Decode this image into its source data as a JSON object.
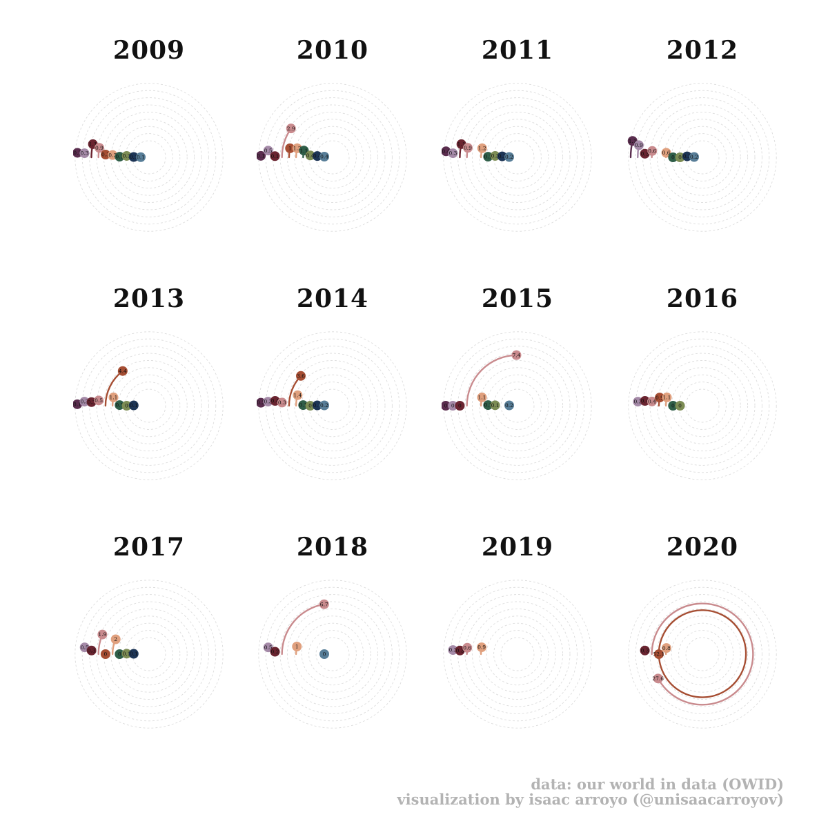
{
  "chart_data": [
    {
      "type": "radial",
      "title": "2009",
      "rmax": 30,
      "points": [
        {
          "label": "0.3",
          "value": 0.3,
          "color": "#5a2d4e",
          "shown": true
        },
        {
          "label": "0.3",
          "value": 0.3,
          "color": "#a58aa8",
          "shown": true
        },
        {
          "label": "1.1",
          "value": 1.1,
          "color": "#6a2430",
          "shown": true
        },
        {
          "label": "0.9",
          "value": 0.9,
          "color": "#c98b8e",
          "shown": true
        },
        {
          "label": "0.3",
          "value": 0.3,
          "color": "#a64e33",
          "shown": true
        },
        {
          "label": "0.3",
          "value": 0.3,
          "color": "#e0a07e",
          "shown": true
        },
        {
          "label": "0.1",
          "value": 0.1,
          "color": "#2f5e48",
          "shown": true
        },
        {
          "label": "0.3",
          "value": 0.3,
          "color": "#7c8c54",
          "shown": true
        },
        {
          "label": "0.1",
          "value": 0.1,
          "color": "#1d3556",
          "shown": true
        },
        {
          "label": "0.1",
          "value": 0.1,
          "color": "#587e98",
          "shown": true
        }
      ]
    },
    {
      "type": "radial",
      "title": "2010",
      "rmax": 30,
      "points": [
        {
          "label": "0.1",
          "value": 0.1,
          "color": "#5a2d4e",
          "shown": true
        },
        {
          "label": "0.5",
          "value": 0.5,
          "color": "#a58aa8",
          "shown": true
        },
        {
          "label": "0.1",
          "value": 0.1,
          "color": "#6a2430",
          "shown": true
        },
        {
          "label": "2.9",
          "value": 2.9,
          "color": "#c98b8e",
          "shown": true
        },
        {
          "label": "1",
          "value": 1,
          "color": "#a64e33",
          "shown": true
        },
        {
          "label": "1.2",
          "value": 1.2,
          "color": "#e0a07e",
          "shown": true
        },
        {
          "label": "1.1",
          "value": 1.1,
          "color": "#2f5e48",
          "shown": true
        },
        {
          "label": "0.4",
          "value": 0.4,
          "color": "#7c8c54",
          "shown": true
        },
        {
          "label": "0.4",
          "value": 0.4,
          "color": "#1d3556",
          "shown": true
        },
        {
          "label": "0.4",
          "value": 0.4,
          "color": "#587e98",
          "shown": true
        }
      ]
    },
    {
      "type": "radial",
      "title": "2011",
      "rmax": 30,
      "points": [
        {
          "label": "0.4",
          "value": 0.4,
          "color": "#5a2d4e",
          "shown": true
        },
        {
          "label": "0.3",
          "value": 0.3,
          "color": "#a58aa8",
          "shown": true
        },
        {
          "label": "1.1",
          "value": 1.1,
          "color": "#6a2430",
          "shown": true
        },
        {
          "label": "0.9",
          "value": 0.9,
          "color": "#c98b8e",
          "shown": true
        },
        {
          "label": "",
          "value": 0,
          "color": "#a64e33",
          "shown": false
        },
        {
          "label": "1.2",
          "value": 1.2,
          "color": "#e0a07e",
          "shown": true
        },
        {
          "label": "0.1",
          "value": 0.1,
          "color": "#2f5e48",
          "shown": true
        },
        {
          "label": "0.3",
          "value": 0.3,
          "color": "#7c8c54",
          "shown": true
        },
        {
          "label": "0.3",
          "value": 0.3,
          "color": "#1d3556",
          "shown": true
        },
        {
          "label": "0.2",
          "value": 0.2,
          "color": "#587e98",
          "shown": true
        }
      ]
    },
    {
      "type": "radial",
      "title": "2012",
      "rmax": 30,
      "points": [
        {
          "label": "1.1",
          "value": 1.1,
          "color": "#5a2d4e",
          "shown": true
        },
        {
          "label": "0.9",
          "value": 0.9,
          "color": "#a58aa8",
          "shown": true
        },
        {
          "label": "0.3",
          "value": 0.3,
          "color": "#6a2430",
          "shown": true
        },
        {
          "label": "0.6",
          "value": 0.6,
          "color": "#c98b8e",
          "shown": true
        },
        {
          "label": "",
          "value": 0,
          "color": "#a64e33",
          "shown": false
        },
        {
          "label": "0.6",
          "value": 0.6,
          "color": "#e0a07e",
          "shown": true
        },
        {
          "label": "0",
          "value": 0,
          "color": "#2f5e48",
          "shown": true
        },
        {
          "label": "0",
          "value": 0,
          "color": "#7c8c54",
          "shown": true
        },
        {
          "label": "0.3",
          "value": 0.3,
          "color": "#1d3556",
          "shown": true
        },
        {
          "label": "0.2",
          "value": 0.2,
          "color": "#587e98",
          "shown": true
        }
      ]
    },
    {
      "type": "radial",
      "title": "2013",
      "rmax": 30,
      "points": [
        {
          "label": "0.1",
          "value": 0.1,
          "color": "#5a2d4e",
          "shown": true
        },
        {
          "label": "0.3",
          "value": 0.3,
          "color": "#a58aa8",
          "shown": true
        },
        {
          "label": "0.3",
          "value": 0.3,
          "color": "#6a2430",
          "shown": true
        },
        {
          "label": "0.5",
          "value": 0.5,
          "color": "#c98b8e",
          "shown": true
        },
        {
          "label": "4.4",
          "value": 4.4,
          "color": "#a64e33",
          "shown": true
        },
        {
          "label": "1.1",
          "value": 1.1,
          "color": "#e0a07e",
          "shown": true
        },
        {
          "label": "0.1",
          "value": 0.1,
          "color": "#2f5e48",
          "shown": true
        },
        {
          "label": "0",
          "value": 0,
          "color": "#7c8c54",
          "shown": true
        },
        {
          "label": "0.1",
          "value": 0.1,
          "color": "#1d3556",
          "shown": true
        },
        {
          "label": "",
          "value": 0,
          "color": "#587e98",
          "shown": false
        }
      ]
    },
    {
      "type": "radial",
      "title": "2014",
      "rmax": 30,
      "points": [
        {
          "label": "0.2",
          "value": 0.2,
          "color": "#5a2d4e",
          "shown": true
        },
        {
          "label": "0.3",
          "value": 0.3,
          "color": "#a58aa8",
          "shown": true
        },
        {
          "label": "0.4",
          "value": 0.4,
          "color": "#6a2430",
          "shown": true
        },
        {
          "label": "0.3",
          "value": 0.3,
          "color": "#c98b8e",
          "shown": true
        },
        {
          "label": "3.6",
          "value": 3.6,
          "color": "#a64e33",
          "shown": true
        },
        {
          "label": "1.4",
          "value": 1.4,
          "color": "#e0a07e",
          "shown": true
        },
        {
          "label": "0.1",
          "value": 0.1,
          "color": "#2f5e48",
          "shown": true
        },
        {
          "label": "0",
          "value": 0,
          "color": "#7c8c54",
          "shown": true
        },
        {
          "label": "0.1",
          "value": 0.1,
          "color": "#1d3556",
          "shown": true
        },
        {
          "label": "0.2",
          "value": 0.2,
          "color": "#587e98",
          "shown": true
        }
      ]
    },
    {
      "type": "radial",
      "title": "2015",
      "rmax": 30,
      "points": [
        {
          "label": "0",
          "value": 0,
          "color": "#5a2d4e",
          "shown": true
        },
        {
          "label": "0",
          "value": 0,
          "color": "#a58aa8",
          "shown": true
        },
        {
          "label": "0",
          "value": 0,
          "color": "#6a2430",
          "shown": true
        },
        {
          "label": "7.4",
          "value": 7.4,
          "color": "#c98b8e",
          "shown": true
        },
        {
          "label": "",
          "value": 0,
          "color": "#a64e33",
          "shown": false
        },
        {
          "label": "1.1",
          "value": 1.1,
          "color": "#e0a07e",
          "shown": true
        },
        {
          "label": "0.1",
          "value": 0.1,
          "color": "#2f5e48",
          "shown": true
        },
        {
          "label": "0.1",
          "value": 0.1,
          "color": "#7c8c54",
          "shown": true
        },
        {
          "label": "",
          "value": 0,
          "color": "#1d3556",
          "shown": false
        },
        {
          "label": "0.2",
          "value": 0.2,
          "color": "#587e98",
          "shown": true
        }
      ]
    },
    {
      "type": "radial",
      "title": "2016",
      "rmax": 30,
      "points": [
        {
          "label": "0",
          "value": 0,
          "color": "#5a2d4e",
          "shown": false
        },
        {
          "label": "0.3",
          "value": 0.3,
          "color": "#a58aa8",
          "shown": true
        },
        {
          "label": "0.4",
          "value": 0.4,
          "color": "#6a2430",
          "shown": true
        },
        {
          "label": "0.4",
          "value": 0.4,
          "color": "#c98b8e",
          "shown": true
        },
        {
          "label": "0.9",
          "value": 0.9,
          "color": "#a64e33",
          "shown": true
        },
        {
          "label": "1.1",
          "value": 1.1,
          "color": "#e0a07e",
          "shown": true
        },
        {
          "label": "0",
          "value": 0,
          "color": "#2f5e48",
          "shown": true
        },
        {
          "label": "0",
          "value": 0,
          "color": "#7c8c54",
          "shown": true
        },
        {
          "label": "",
          "value": 0,
          "color": "#1d3556",
          "shown": false
        },
        {
          "label": "",
          "value": 0,
          "color": "#587e98",
          "shown": false
        }
      ]
    },
    {
      "type": "radial",
      "title": "2017",
      "rmax": 30,
      "points": [
        {
          "label": "",
          "value": 0,
          "color": "#5a2d4e",
          "shown": false
        },
        {
          "label": "0.5",
          "value": 0.5,
          "color": "#a58aa8",
          "shown": true
        },
        {
          "label": "0.3",
          "value": 0.3,
          "color": "#6a2430",
          "shown": true
        },
        {
          "label": "1.9",
          "value": 1.9,
          "color": "#c98b8e",
          "shown": true
        },
        {
          "label": "0",
          "value": 0,
          "color": "#a64e33",
          "shown": true
        },
        {
          "label": "2",
          "value": 2,
          "color": "#e0a07e",
          "shown": true
        },
        {
          "label": "0",
          "value": 0,
          "color": "#2f5e48",
          "shown": true
        },
        {
          "label": "0.1",
          "value": 0.1,
          "color": "#7c8c54",
          "shown": true
        },
        {
          "label": "0.1",
          "value": 0.1,
          "color": "#1d3556",
          "shown": true
        },
        {
          "label": "",
          "value": 0,
          "color": "#587e98",
          "shown": false
        }
      ]
    },
    {
      "type": "radial",
      "title": "2018",
      "rmax": 30,
      "points": [
        {
          "label": "",
          "value": 0,
          "color": "#5a2d4e",
          "shown": false
        },
        {
          "label": "0.5",
          "value": 0.5,
          "color": "#a58aa8",
          "shown": true
        },
        {
          "label": "0.2",
          "value": 0.2,
          "color": "#6a2430",
          "shown": true
        },
        {
          "label": "6.7",
          "value": 6.7,
          "color": "#c98b8e",
          "shown": true
        },
        {
          "label": "",
          "value": 0,
          "color": "#a64e33",
          "shown": false
        },
        {
          "label": "1",
          "value": 1,
          "color": "#e0a07e",
          "shown": true
        },
        {
          "label": "",
          "value": 0,
          "color": "#2f5e48",
          "shown": false
        },
        {
          "label": "",
          "value": 0,
          "color": "#7c8c54",
          "shown": false
        },
        {
          "label": "",
          "value": 0,
          "color": "#1d3556",
          "shown": false
        },
        {
          "label": "0",
          "value": 0,
          "color": "#587e98",
          "shown": true
        }
      ]
    },
    {
      "type": "radial",
      "title": "2019",
      "rmax": 30,
      "points": [
        {
          "label": "",
          "value": 0,
          "color": "#5a2d4e",
          "shown": false
        },
        {
          "label": "0.3",
          "value": 0.3,
          "color": "#a58aa8",
          "shown": true
        },
        {
          "label": "0.3",
          "value": 0.3,
          "color": "#6a2430",
          "shown": true
        },
        {
          "label": "0.6",
          "value": 0.6,
          "color": "#c98b8e",
          "shown": true
        },
        {
          "label": "",
          "value": 0,
          "color": "#a64e33",
          "shown": false
        },
        {
          "label": "0.9",
          "value": 0.9,
          "color": "#e0a07e",
          "shown": true
        },
        {
          "label": "",
          "value": 0,
          "color": "#2f5e48",
          "shown": false
        },
        {
          "label": "",
          "value": 0,
          "color": "#7c8c54",
          "shown": false
        },
        {
          "label": "",
          "value": 0,
          "color": "#1d3556",
          "shown": false
        },
        {
          "label": "",
          "value": 0,
          "color": "#587e98",
          "shown": false
        }
      ]
    },
    {
      "type": "radial",
      "title": "2020",
      "rmax": 30,
      "points": [
        {
          "label": "",
          "value": 0,
          "color": "#5a2d4e",
          "shown": false
        },
        {
          "label": "",
          "value": 0,
          "color": "#a58aa8",
          "shown": false
        },
        {
          "label": "0.3",
          "value": 0.3,
          "color": "#6a2430",
          "shown": true
        },
        {
          "label": "27.6",
          "value": 27.6,
          "color": "#c98b8e",
          "shown": true
        },
        {
          "label": "52.1",
          "value": 52.1,
          "color": "#a64e33",
          "shown": true
        },
        {
          "label": "0.8",
          "value": 0.8,
          "color": "#e0a07e",
          "shown": true
        },
        {
          "label": "",
          "value": 0,
          "color": "#2f5e48",
          "shown": false
        },
        {
          "label": "",
          "value": 0,
          "color": "#7c8c54",
          "shown": false
        },
        {
          "label": "",
          "value": 0,
          "color": "#1d3556",
          "shown": false
        },
        {
          "label": "",
          "value": 0,
          "color": "#587e98",
          "shown": false
        }
      ]
    }
  ],
  "footer": {
    "source": "data: our world in data (OWID)",
    "credit": "visualization by isaac arroyo (@unisaacarroyov)"
  }
}
